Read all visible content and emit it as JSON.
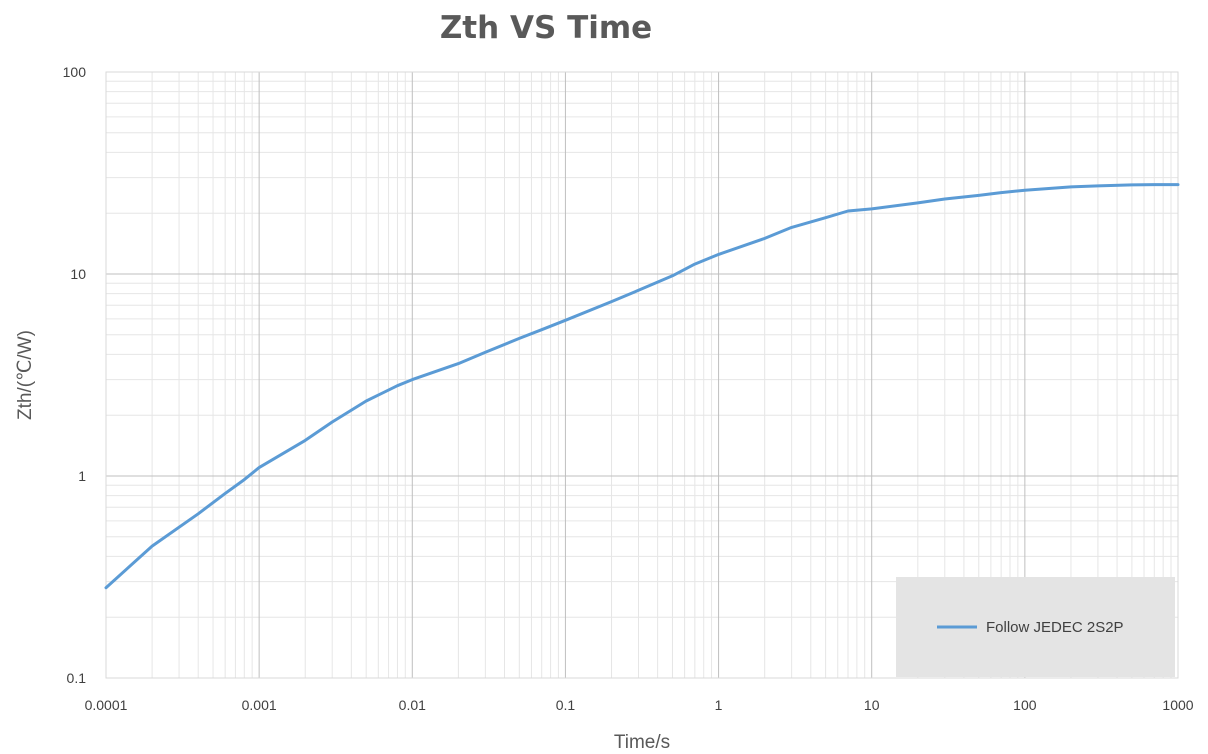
{
  "chart_data": {
    "type": "line",
    "title": "Zth VS Time",
    "xlabel": "Time/s",
    "ylabel": "Zth/(℃/W)",
    "x_scale": "log",
    "y_scale": "log",
    "xlim": [
      0.0001,
      1000
    ],
    "ylim": [
      0.1,
      100
    ],
    "x_ticks": [
      "0.0001",
      "0.001",
      "0.01",
      "0.1",
      "1",
      "10",
      "100",
      "1000"
    ],
    "y_ticks": [
      "0.1",
      "1",
      "10",
      "100"
    ],
    "grid": true,
    "legend_position": "bottom-right",
    "series": [
      {
        "name": "Follow JEDEC 2S2P",
        "color": "#5b9bd5",
        "x": [
          0.0001,
          0.0002,
          0.0004,
          0.0006,
          0.0008,
          0.001,
          0.002,
          0.003,
          0.005,
          0.008,
          0.01,
          0.02,
          0.03,
          0.05,
          0.07,
          0.1,
          0.2,
          0.3,
          0.5,
          0.7,
          1,
          2,
          3,
          5,
          7,
          10,
          20,
          30,
          50,
          70,
          100,
          200,
          300,
          500,
          700,
          1000
        ],
        "y": [
          0.28,
          0.45,
          0.65,
          0.82,
          0.96,
          1.1,
          1.5,
          1.85,
          2.35,
          2.8,
          3.0,
          3.6,
          4.1,
          4.8,
          5.3,
          5.9,
          7.3,
          8.3,
          9.8,
          11.2,
          12.5,
          15,
          17,
          19,
          20.5,
          21,
          22.5,
          23.5,
          24.5,
          25.3,
          26,
          27,
          27.3,
          27.6,
          27.7,
          27.7
        ]
      }
    ]
  }
}
